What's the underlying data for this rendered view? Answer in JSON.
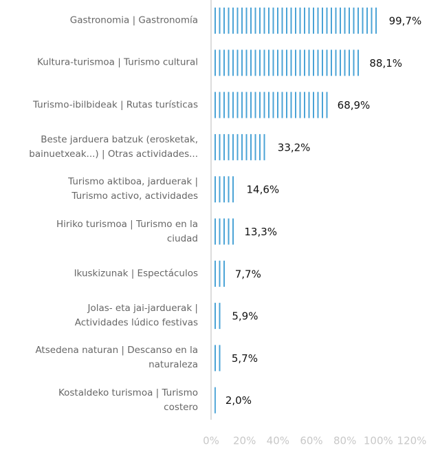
{
  "chart_data": {
    "type": "bar",
    "orientation": "horizontal",
    "categories": [
      "Gastronomia | Gastronomía",
      "Kultura-turismoa | Turismo cultural",
      "Turismo-ibilbideak | Rutas turísticas",
      "Beste jarduera batzuk (erosketak,\nbainuetxeak...) | Otras actividades...",
      "Turismo aktiboa, jarduerak |\nTurismo activo, actividades",
      "Hiriko turismoa | Turismo en la\nciudad",
      "Ikuskizunak | Espectáculos",
      "Jolas- eta jai-jarduerak |\nActividades lúdico festivas",
      "Atsedena naturan | Descanso en la\nnaturaleza",
      "Kostaldeko turismoa | Turismo\ncostero"
    ],
    "values": [
      99.7,
      88.1,
      68.9,
      33.2,
      14.6,
      13.3,
      7.7,
      5.9,
      5.7,
      2.0
    ],
    "value_labels": [
      "99,7%",
      "88,1%",
      "68,9%",
      "33,2%",
      "14,6%",
      "13,3%",
      "7,7%",
      "5,9%",
      "5,7%",
      "2,0%"
    ],
    "color": "#4aa3d6",
    "xlim": [
      0,
      120
    ],
    "xticks": [
      {
        "value": 0,
        "label": "0%"
      },
      {
        "value": 20,
        "label": "20%"
      },
      {
        "value": 40,
        "label": "40%"
      },
      {
        "value": 60,
        "label": "60%"
      },
      {
        "value": 80,
        "label": "80%"
      },
      {
        "value": 100,
        "label": "100%"
      },
      {
        "value": 120,
        "label": "120%"
      }
    ]
  }
}
